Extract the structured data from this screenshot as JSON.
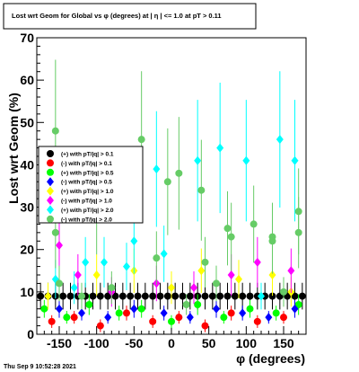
{
  "chart_data": {
    "type": "scatter",
    "title": "Lost wrt Geom for Global vs φ (degrees) at |  η | <= 1.0 at pT > 0.11",
    "xlabel": "φ (degrees)",
    "ylabel": "Lost wrt Geom (%)",
    "xlim": [
      -180,
      180
    ],
    "ylim": [
      0,
      70
    ],
    "x_ticks": [
      -150,
      -100,
      -50,
      0,
      50,
      100,
      150
    ],
    "y_ticks": [
      0,
      10,
      20,
      30,
      40,
      50,
      60,
      70
    ],
    "grid": false,
    "legend_position": "left",
    "timestamp": "Thu Sep  9 10:52:28 2021",
    "series": [
      {
        "name": "(+) with pT/|q| > 0.1",
        "color": "#000000",
        "marker": "circle",
        "points": [
          [
            -175,
            9
          ],
          [
            -165,
            9
          ],
          [
            -155,
            9
          ],
          [
            -145,
            9
          ],
          [
            -135,
            9
          ],
          [
            -125,
            9
          ],
          [
            -115,
            9
          ],
          [
            -105,
            9
          ],
          [
            -95,
            9
          ],
          [
            -85,
            9
          ],
          [
            -75,
            9
          ],
          [
            -65,
            9
          ],
          [
            -55,
            9
          ],
          [
            -45,
            9
          ],
          [
            -35,
            9
          ],
          [
            -25,
            9
          ],
          [
            -15,
            9
          ],
          [
            -5,
            9
          ],
          [
            5,
            9
          ],
          [
            15,
            9
          ],
          [
            25,
            9
          ],
          [
            35,
            9
          ],
          [
            45,
            9
          ],
          [
            55,
            9
          ],
          [
            65,
            9
          ],
          [
            75,
            9
          ],
          [
            85,
            9
          ],
          [
            95,
            9
          ],
          [
            105,
            9
          ],
          [
            115,
            9
          ],
          [
            125,
            9
          ],
          [
            135,
            9
          ],
          [
            145,
            9
          ],
          [
            155,
            9
          ],
          [
            165,
            9
          ],
          [
            175,
            9
          ]
        ]
      },
      {
        "name": "(-) with pT/|q| > 0.1",
        "color": "#ff0000",
        "marker": "circle",
        "points": [
          [
            -160,
            3
          ],
          [
            -130,
            4
          ],
          [
            -95,
            2
          ],
          [
            -60,
            5
          ],
          [
            -25,
            3
          ],
          [
            10,
            4
          ],
          [
            45,
            2
          ],
          [
            80,
            5
          ],
          [
            115,
            3
          ],
          [
            150,
            4
          ]
        ]
      },
      {
        "name": "(+) with pT/|q| > 0.5",
        "color": "#00ff00",
        "marker": "circle",
        "points": [
          [
            -170,
            6
          ],
          [
            -140,
            4
          ],
          [
            -110,
            7
          ],
          [
            -70,
            5
          ],
          [
            -40,
            6
          ],
          [
            0,
            3
          ],
          [
            35,
            7
          ],
          [
            70,
            4
          ],
          [
            105,
            6
          ],
          [
            140,
            5
          ],
          [
            170,
            7
          ]
        ]
      },
      {
        "name": "(-) with pT/|q| > 0.5",
        "color": "#0000ff",
        "marker": "diamond",
        "points": [
          [
            -150,
            6
          ],
          [
            -120,
            5
          ],
          [
            -85,
            4
          ],
          [
            -50,
            6
          ],
          [
            -10,
            5
          ],
          [
            25,
            4
          ],
          [
            60,
            6
          ],
          [
            95,
            5
          ],
          [
            130,
            4
          ],
          [
            165,
            6
          ]
        ]
      },
      {
        "name": "(+) with pT/|q| > 1.0",
        "color": "#ffff00",
        "marker": "diamond",
        "points": [
          [
            -165,
            9
          ],
          [
            -100,
            14
          ],
          [
            -50,
            15
          ],
          [
            0,
            11
          ],
          [
            40,
            15
          ],
          [
            90,
            13
          ],
          [
            135,
            14
          ],
          [
            160,
            10
          ]
        ]
      },
      {
        "name": "(-) with pT/|q| > 1.0",
        "color": "#ff00ff",
        "marker": "diamond",
        "points": [
          [
            -150,
            21
          ],
          [
            -125,
            14
          ],
          [
            -80,
            10
          ],
          [
            -20,
            12
          ],
          [
            30,
            11
          ],
          [
            80,
            14
          ],
          [
            115,
            17
          ],
          [
            160,
            15
          ]
        ]
      },
      {
        "name": "(+) with pT/|q| > 2.0",
        "color": "#00ffff",
        "marker": "diamond",
        "points": [
          [
            -155,
            13
          ],
          [
            -115,
            17
          ],
          [
            -90,
            17
          ],
          [
            -60,
            16
          ],
          [
            -50,
            22
          ],
          [
            -20,
            39
          ],
          [
            -10,
            19
          ],
          [
            35,
            41
          ],
          [
            65,
            44
          ],
          [
            100,
            41
          ],
          [
            145,
            46
          ],
          [
            165,
            41
          ],
          [
            -130,
            11
          ],
          [
            120,
            9
          ]
        ]
      },
      {
        "name": "(-) with pT/|q| > 2.0",
        "color": "#66cc66",
        "marker": "circle",
        "points": [
          [
            -155,
            48
          ],
          [
            -155,
            24
          ],
          [
            -100,
            29
          ],
          [
            -40,
            46
          ],
          [
            -20,
            18
          ],
          [
            -5,
            36
          ],
          [
            10,
            38
          ],
          [
            40,
            34
          ],
          [
            45,
            17
          ],
          [
            75,
            25
          ],
          [
            80,
            23
          ],
          [
            110,
            26
          ],
          [
            135,
            23
          ],
          [
            135,
            22
          ],
          [
            170,
            29
          ],
          [
            170,
            24
          ],
          [
            -150,
            12
          ],
          [
            -80,
            11
          ],
          [
            60,
            12
          ],
          [
            150,
            10
          ],
          [
            -120,
            9
          ],
          [
            20,
            7
          ]
        ]
      }
    ]
  }
}
